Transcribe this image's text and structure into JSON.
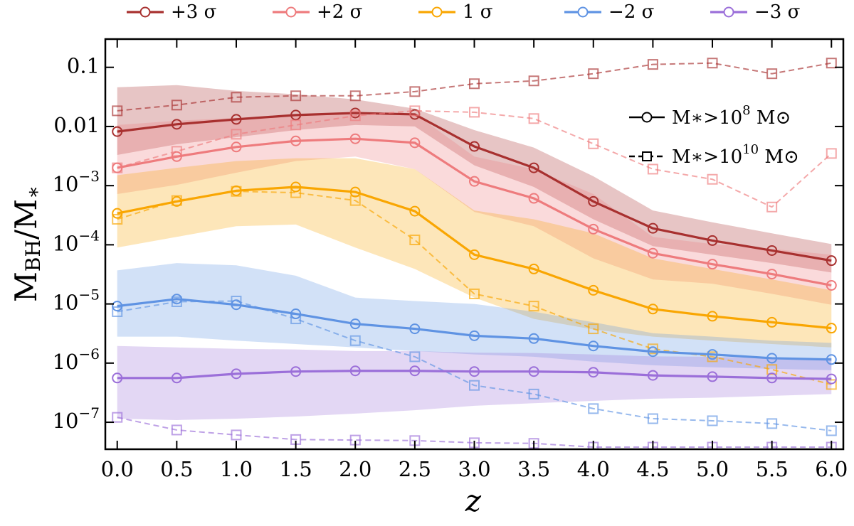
{
  "chart_data": {
    "type": "line",
    "xlabel": "z",
    "ylabel": {
      "base": "M",
      "sub": "BH",
      "mid": "/M",
      "sub2": "∗"
    },
    "x": [
      0,
      0.5,
      1,
      1.5,
      2,
      2.5,
      3,
      3.5,
      4,
      4.5,
      5,
      5.5,
      6
    ],
    "xlim": [
      -0.1,
      6.1
    ],
    "xticks": [
      {
        "value": 0,
        "label": "0.0"
      },
      0.5,
      {
        "value": 1,
        "label": "1.0"
      },
      1.5,
      {
        "value": 2,
        "label": "2.0"
      },
      2.5,
      {
        "value": 3,
        "label": "3.0"
      },
      3.5,
      {
        "value": 4,
        "label": "4.0"
      },
      4.5,
      {
        "value": 5,
        "label": "5.0"
      },
      5.5,
      {
        "value": 6,
        "label": "6.0"
      }
    ],
    "ylim": [
      3.5e-08,
      0.3
    ],
    "yscale": "log",
    "yticks": [
      0.1,
      0.01,
      {
        "value": 0.001,
        "label": "10",
        "exponent": "−3"
      },
      {
        "value": 0.0001,
        "label": "10",
        "exponent": "−4"
      },
      {
        "value": 1e-05,
        "label": "10",
        "exponent": "−5"
      },
      {
        "value": 1e-06,
        "label": "10",
        "exponent": "−6"
      },
      {
        "value": 1e-07,
        "label": "10",
        "exponent": "−7"
      }
    ],
    "style_legend": [
      {
        "text": "M∗>10",
        "sup": "8",
        "unit": " M⊙",
        "dash": false
      },
      {
        "text": "M∗>10",
        "sup": "10",
        "unit": " M⊙",
        "dash": true
      }
    ],
    "series": [
      {
        "name": "+3 σ",
        "color": "#a8302f",
        "values": [
          0.0082,
          0.0109,
          0.0132,
          0.0156,
          0.0169,
          0.016,
          0.0046,
          0.002,
          0.00054,
          0.00019,
          0.000118,
          8e-05,
          5.4e-05
        ],
        "values_massive": [
          0.0184,
          0.023,
          0.0312,
          0.033,
          0.033,
          0.0389,
          0.0528,
          0.059,
          0.078,
          0.112,
          0.118,
          0.078,
          0.118
        ],
        "lower": [
          0.0033,
          0.005,
          0.0066,
          0.0087,
          0.0106,
          0.01,
          0.0022,
          0.00095,
          0.00027,
          9.5e-05,
          6.8e-05,
          4.9e-05,
          3.4e-05
        ],
        "upper": [
          0.046,
          0.05,
          0.04,
          0.035,
          0.0287,
          0.02,
          0.0087,
          0.0044,
          0.00144,
          0.00038,
          0.00024,
          0.000156,
          0.000103
        ]
      },
      {
        "name": "+2 σ",
        "color": "#ee7b7d",
        "values": [
          0.002,
          0.0031,
          0.0045,
          0.0057,
          0.0062,
          0.0053,
          0.00118,
          0.00061,
          0.000184,
          7.2e-05,
          4.7e-05,
          3.2e-05,
          2.06e-05
        ],
        "values_massive": [
          0.002,
          0.0038,
          0.0074,
          0.0106,
          0.0152,
          0.0184,
          0.0174,
          0.0136,
          0.0051,
          0.0019,
          0.00128,
          0.000435,
          0.0035
        ],
        "lower": [
          0.00072,
          0.00103,
          0.00165,
          0.0026,
          0.0031,
          0.0019,
          0.00036,
          0.000206,
          5.9e-05,
          2.6e-05,
          2.2e-05,
          1.48e-05,
          9.7e-06
        ],
        "upper": [
          0.0106,
          0.0125,
          0.014,
          0.0152,
          0.0165,
          0.0165,
          0.0031,
          0.0019,
          0.00072,
          0.000136,
          0.000103,
          8.5e-05,
          6.8e-05
        ]
      },
      {
        "name": "1 σ",
        "color": "#f9a602",
        "values": [
          0.00034,
          0.00054,
          0.00082,
          0.00095,
          0.00078,
          0.00037,
          6.8e-05,
          3.9e-05,
          1.7e-05,
          8.2e-06,
          6.2e-06,
          4.9e-06,
          3.9e-06
        ],
        "values_massive": [
          0.00027,
          0.00056,
          0.0008,
          0.00076,
          0.00056,
          0.000121,
          1.48e-05,
          9.2e-06,
          3.8e-06,
          1.74e-06,
          1.28e-06,
          7.8e-07,
          4.35e-07
        ],
        "lower": [
          9e-05,
          0.000136,
          0.000206,
          0.00022,
          9e-05,
          3.9e-05,
          1.28e-05,
          5.6e-06,
          3.7e-06,
          2.8e-06,
          2.4e-06,
          2.1e-06,
          1.84e-06
        ],
        "upper": [
          0.0015,
          0.002,
          0.0026,
          0.0029,
          0.0029,
          0.0019,
          0.00038,
          0.00027,
          0.000156,
          5.9e-05,
          3.9e-05,
          2.6e-05,
          1.7e-05
        ]
      },
      {
        "name": "−2 σ",
        "color": "#5f93e3",
        "values": [
          9.2e-06,
          1.21e-05,
          9.7e-06,
          6.8e-06,
          4.6e-06,
          3.8e-06,
          2.9e-06,
          2.6e-06,
          1.95e-06,
          1.56e-06,
          1.4e-06,
          1.21e-06,
          1.15e-06
        ],
        "values_massive": [
          7.4e-06,
          1.09e-05,
          1.12e-05,
          5.6e-06,
          2.4e-06,
          1.28e-06,
          4.2e-07,
          3e-07,
          1.7e-07,
          1.15e-07,
          1.06e-07,
          9.5e-08,
          7.2e-08
        ],
        "lower": [
          2.8e-06,
          2.8e-06,
          2.4e-06,
          2.1e-06,
          1.84e-06,
          1.6e-06,
          1.4e-06,
          1.28e-06,
          1.06e-06,
          9.2e-07,
          8.5e-07,
          8e-07,
          7.6e-07
        ],
        "upper": [
          3.7e-05,
          4.9e-05,
          4.5e-05,
          3e-05,
          1.28e-05,
          1.12e-05,
          1e-05,
          7.4e-06,
          4.9e-06,
          3.2e-06,
          2.8e-06,
          2.4e-06,
          2.2e-06
        ]
      },
      {
        "name": "−3 σ",
        "color": "#9b6fd9",
        "values": [
          5.6e-07,
          5.6e-07,
          6.6e-07,
          7.2e-07,
          7.4e-07,
          7.4e-07,
          7.2e-07,
          7.2e-07,
          7e-07,
          6.2e-07,
          5.9e-07,
          5.6e-07,
          5.4e-07
        ],
        "values_massive": [
          1.21e-07,
          7.4e-08,
          6.1e-08,
          5.1e-08,
          5e-08,
          4.9e-08,
          4.5e-08,
          4.4e-08,
          3.8e-08,
          3.8e-08,
          3.8e-08,
          3.8e-08,
          3.8e-08
        ],
        "lower": [
          1.15e-07,
          1.09e-07,
          1.15e-07,
          1.25e-07,
          1.4e-07,
          1.6e-07,
          1.9e-07,
          2.1e-07,
          2.3e-07,
          2.5e-07,
          2.6e-07,
          2.8e-07,
          3e-07
        ],
        "upper": [
          1.95e-06,
          1.84e-06,
          1.74e-06,
          1.7e-06,
          1.6e-06,
          1.6e-06,
          1.5e-06,
          1.48e-06,
          1.4e-06,
          1.3e-06,
          1.28e-06,
          1.21e-06,
          1.21e-06
        ]
      }
    ]
  }
}
